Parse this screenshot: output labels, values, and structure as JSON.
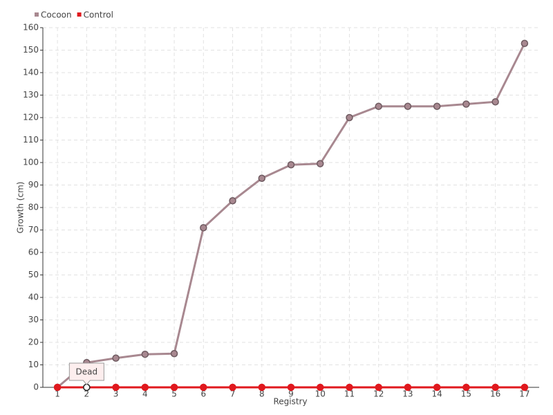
{
  "chart_data": {
    "type": "line",
    "x_label": "Registry",
    "y_label": "Growth (cm)",
    "categories": [
      "1",
      "2",
      "3",
      "4",
      "5",
      "6",
      "7",
      "8",
      "9",
      "10",
      "11",
      "12",
      "13",
      "14",
      "15",
      "16",
      "17"
    ],
    "series": [
      {
        "name": "Cocoon",
        "color": "#a88890",
        "values": [
          0,
          11,
          13,
          14.7,
          15,
          71,
          83,
          93,
          99,
          99.5,
          120,
          125,
          125,
          125,
          126,
          127,
          153
        ]
      },
      {
        "name": "Control",
        "color": "#e0191e",
        "values": [
          0,
          0,
          0,
          0,
          0,
          0,
          0,
          0,
          0,
          0,
          0,
          0,
          0,
          0,
          0,
          0,
          0
        ]
      }
    ],
    "ylim": [
      0,
      160
    ],
    "yticks": [
      0,
      10,
      20,
      30,
      40,
      50,
      60,
      70,
      80,
      90,
      100,
      110,
      120,
      130,
      140,
      150,
      160
    ],
    "grid": true,
    "legend": "top-left",
    "annotations": [
      {
        "text": "Dead",
        "category": "2",
        "series": "Control"
      }
    ]
  }
}
